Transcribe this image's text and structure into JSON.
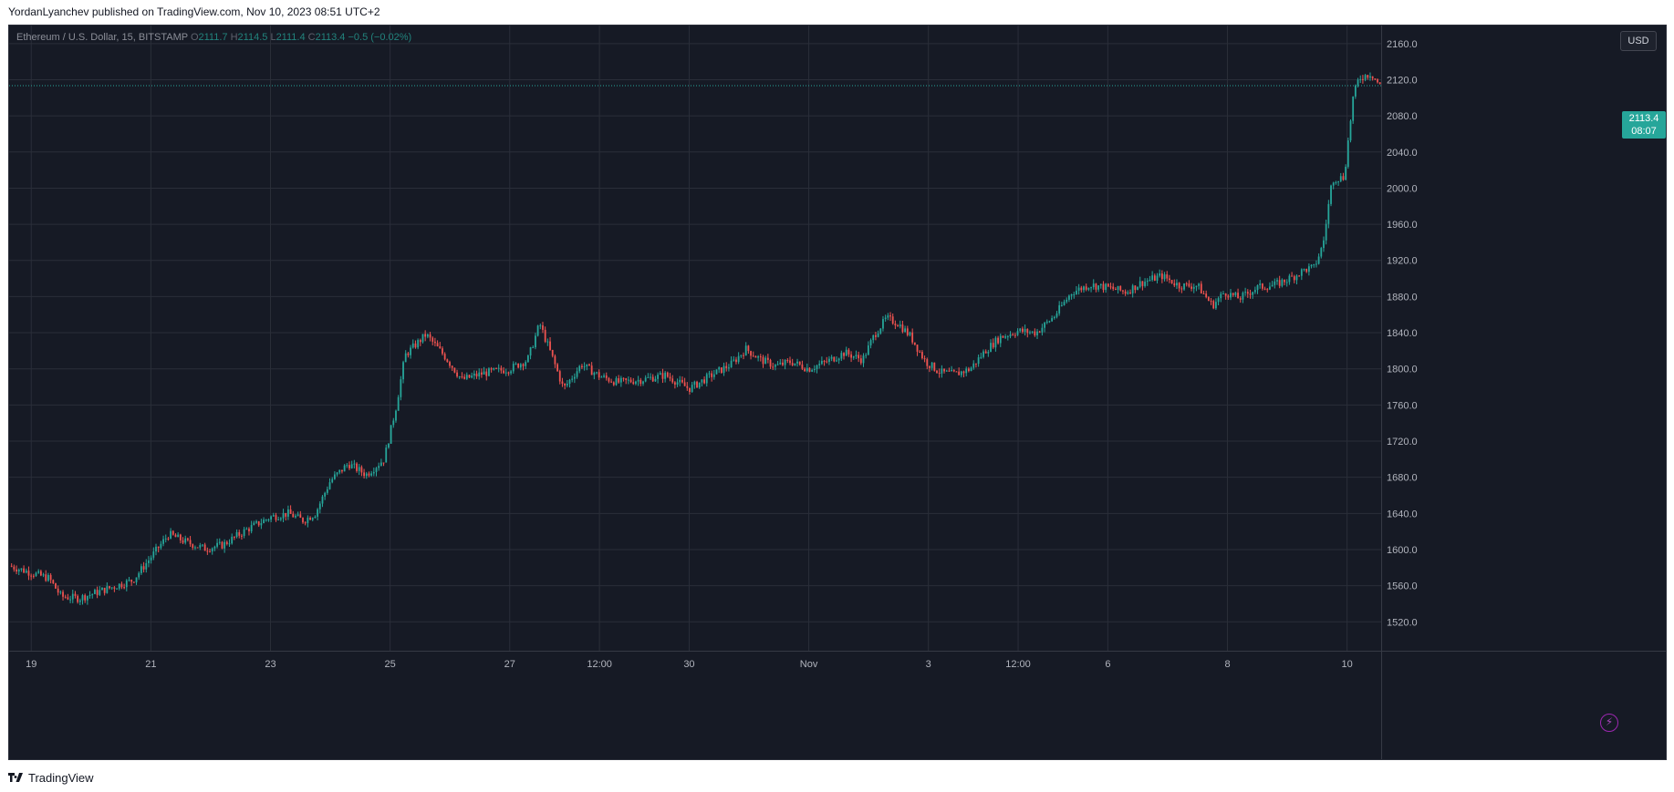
{
  "header": {
    "publish_line": "YordanLyanchev published on TradingView.com, Nov 10, 2023 08:51 UTC+2"
  },
  "legend": {
    "symbol": "Ethereum / U.S. Dollar, 15, BITSTAMP",
    "open_label": "O",
    "open": "2111.7",
    "high_label": "H",
    "high": "2114.5",
    "low_label": "L",
    "low": "2111.4",
    "close_label": "C",
    "close": "2113.4",
    "change": "−0.5 (−0.02%)"
  },
  "price_scale": {
    "currency_button": "USD",
    "last_price": "2113.4",
    "countdown": "08:07"
  },
  "footer": {
    "brand": "TradingView"
  },
  "icons": {
    "logo": "tradingview-logo-icon",
    "bolt": "lightning-icon"
  },
  "colors": {
    "background": "#161a25",
    "grid": "#2a2e39",
    "up": "#26a69a",
    "down": "#ef5350",
    "axis_text": "#b2b5be",
    "bolt": "#9c27b0"
  },
  "chart_data": {
    "type": "candlestick",
    "symbol": "Ethereum / U.S. Dollar",
    "interval": "15",
    "exchange": "BITSTAMP",
    "y_ticks": [
      1520,
      1560,
      1600,
      1640,
      1680,
      1720,
      1760,
      1800,
      1840,
      1880,
      1920,
      1960,
      2000,
      2040,
      2080,
      2120,
      2160
    ],
    "y_tick_labels": [
      "1520.0",
      "1560.0",
      "1600.0",
      "1640.0",
      "1680.0",
      "1720.0",
      "1760.0",
      "1800.0",
      "1840.0",
      "1880.0",
      "1920.0",
      "1960.0",
      "2000.0",
      "2040.0",
      "2080.0",
      "2120.0",
      "2160.0"
    ],
    "ylim": [
      1488,
      2180
    ],
    "x_tick_labels": [
      "19",
      "21",
      "23",
      "25",
      "27",
      "12:00",
      "30",
      "Nov",
      "3",
      "12:00",
      "6",
      "8",
      "10"
    ],
    "x_tick_days": [
      0,
      2,
      4,
      6,
      8,
      9.5,
      11,
      13,
      15,
      16.5,
      18,
      20,
      22
    ],
    "xlim": [
      -0.37,
      22.57
    ],
    "last_price": 2113.4,
    "grid": true,
    "price_path": [
      [
        -0.37,
        1582
      ],
      [
        0.3,
        1568
      ],
      [
        0.5,
        1548
      ],
      [
        0.8,
        1546
      ],
      [
        1.2,
        1555
      ],
      [
        1.7,
        1566
      ],
      [
        2.1,
        1600
      ],
      [
        2.3,
        1617
      ],
      [
        2.6,
        1608
      ],
      [
        2.9,
        1601
      ],
      [
        3.2,
        1605
      ],
      [
        3.6,
        1622
      ],
      [
        4.0,
        1636
      ],
      [
        4.3,
        1640
      ],
      [
        4.55,
        1632
      ],
      [
        4.75,
        1640
      ],
      [
        5.0,
        1676
      ],
      [
        5.3,
        1695
      ],
      [
        5.6,
        1683
      ],
      [
        5.9,
        1700
      ],
      [
        6.1,
        1758
      ],
      [
        6.25,
        1815
      ],
      [
        6.4,
        1825
      ],
      [
        6.6,
        1838
      ],
      [
        6.9,
        1815
      ],
      [
        7.2,
        1788
      ],
      [
        7.55,
        1795
      ],
      [
        8.0,
        1800
      ],
      [
        8.3,
        1810
      ],
      [
        8.5,
        1850
      ],
      [
        8.7,
        1815
      ],
      [
        8.9,
        1778
      ],
      [
        9.2,
        1805
      ],
      [
        9.5,
        1792
      ],
      [
        9.8,
        1785
      ],
      [
        10.2,
        1788
      ],
      [
        10.6,
        1793
      ],
      [
        11.0,
        1778
      ],
      [
        11.4,
        1794
      ],
      [
        11.7,
        1805
      ],
      [
        11.95,
        1822
      ],
      [
        12.2,
        1810
      ],
      [
        12.45,
        1803
      ],
      [
        12.7,
        1808
      ],
      [
        13.0,
        1800
      ],
      [
        13.3,
        1808
      ],
      [
        13.6,
        1818
      ],
      [
        13.9,
        1810
      ],
      [
        14.1,
        1838
      ],
      [
        14.3,
        1856
      ],
      [
        14.5,
        1850
      ],
      [
        14.7,
        1836
      ],
      [
        14.95,
        1808
      ],
      [
        15.2,
        1796
      ],
      [
        15.45,
        1794
      ],
      [
        15.7,
        1800
      ],
      [
        15.95,
        1820
      ],
      [
        16.2,
        1835
      ],
      [
        16.5,
        1842
      ],
      [
        16.8,
        1840
      ],
      [
        17.1,
        1858
      ],
      [
        17.4,
        1885
      ],
      [
        17.7,
        1893
      ],
      [
        18.0,
        1890
      ],
      [
        18.3,
        1885
      ],
      [
        18.55,
        1895
      ],
      [
        18.9,
        1903
      ],
      [
        19.2,
        1892
      ],
      [
        19.5,
        1892
      ],
      [
        19.75,
        1870
      ],
      [
        19.95,
        1885
      ],
      [
        20.2,
        1878
      ],
      [
        20.5,
        1890
      ],
      [
        20.8,
        1893
      ],
      [
        21.1,
        1902
      ],
      [
        21.3,
        1910
      ],
      [
        21.45,
        1912
      ],
      [
        21.6,
        1938
      ],
      [
        21.75,
        2010
      ],
      [
        21.95,
        2012
      ],
      [
        22.1,
        2100
      ],
      [
        22.2,
        2122
      ],
      [
        22.4,
        2127
      ],
      [
        22.55,
        2113.4
      ]
    ]
  }
}
